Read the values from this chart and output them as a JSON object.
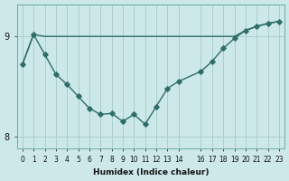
{
  "xlabel": "Humidex (Indice chaleur)",
  "bg_color": "#cce8e8",
  "line_color": "#2e6e6a",
  "grid_color": "#aad0cc",
  "line1_x": [
    0,
    1,
    2,
    3,
    4,
    5,
    6,
    7,
    8,
    9,
    10,
    11,
    12,
    13,
    14,
    16,
    17,
    18,
    19,
    20,
    21,
    22,
    23
  ],
  "line1_y": [
    8.72,
    9.02,
    9.0,
    9.0,
    9.0,
    9.0,
    9.0,
    9.0,
    9.0,
    9.0,
    9.0,
    9.0,
    9.0,
    9.0,
    9.0,
    9.0,
    9.0,
    9.0,
    9.0,
    9.06,
    9.1,
    9.13,
    9.15
  ],
  "line2_x": [
    0,
    1,
    2,
    3,
    4,
    5,
    6,
    7,
    8,
    9,
    10,
    11,
    12,
    13,
    14,
    16,
    17,
    18,
    19,
    20,
    21,
    22,
    23
  ],
  "line2_y": [
    8.72,
    9.02,
    8.82,
    8.62,
    8.52,
    8.4,
    8.28,
    8.22,
    8.23,
    8.15,
    8.22,
    8.12,
    8.3,
    8.48,
    8.55,
    8.65,
    8.75,
    8.88,
    8.98,
    9.06,
    9.1,
    9.13,
    9.15
  ],
  "ylim": [
    7.88,
    9.32
  ],
  "yticks": [
    8,
    9
  ],
  "xlim": [
    -0.5,
    23.5
  ],
  "xticks": [
    0,
    1,
    2,
    3,
    4,
    5,
    6,
    7,
    8,
    9,
    10,
    11,
    12,
    13,
    14,
    16,
    17,
    18,
    19,
    20,
    21,
    22,
    23
  ],
  "xticklabels": [
    "0",
    "1",
    "2",
    "3",
    "4",
    "5",
    "6",
    "7",
    "8",
    "9",
    "10",
    "11",
    "12",
    "13",
    "14",
    "16",
    "17",
    "18",
    "19",
    "20",
    "21",
    "22",
    "23"
  ],
  "tick_fontsize": 5.5,
  "xlabel_fontsize": 6.5
}
